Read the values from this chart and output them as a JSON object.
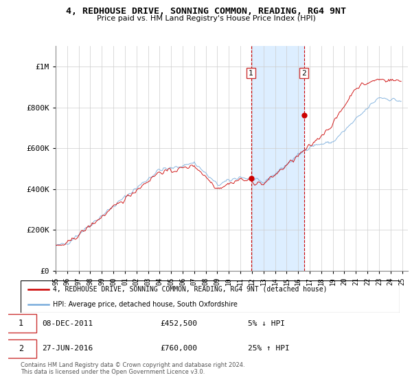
{
  "title": "4, REDHOUSE DRIVE, SONNING COMMON, READING, RG4 9NT",
  "subtitle": "Price paid vs. HM Land Registry's House Price Index (HPI)",
  "legend_line1": "4, REDHOUSE DRIVE, SONNING COMMON, READING, RG4 9NT (detached house)",
  "legend_line2": "HPI: Average price, detached house, South Oxfordshire",
  "transaction1_date": "08-DEC-2011",
  "transaction1_price": "£452,500",
  "transaction1_hpi": "5% ↓ HPI",
  "transaction2_date": "27-JUN-2016",
  "transaction2_price": "£760,000",
  "transaction2_hpi": "25% ↑ HPI",
  "footnote": "Contains HM Land Registry data © Crown copyright and database right 2024.\nThis data is licensed under the Open Government Licence v3.0.",
  "xlim_start": 1995.0,
  "xlim_end": 2025.5,
  "ylim_bottom": 0,
  "ylim_top": 1100000,
  "red_color": "#cc0000",
  "blue_color": "#7aaddc",
  "shade_color": "#ddeeff",
  "grid_color": "#cccccc",
  "transaction1_x": 2011.917,
  "transaction1_y": 452500,
  "transaction2_x": 2016.5,
  "transaction2_y": 760000,
  "ytick_vals": [
    0,
    200000,
    400000,
    600000,
    800000,
    1000000
  ],
  "ytick_labels": [
    "£0",
    "£200K",
    "£400K",
    "£600K",
    "£800K",
    "£1M"
  ],
  "xticks": [
    1995,
    1996,
    1997,
    1998,
    1999,
    2000,
    2001,
    2002,
    2003,
    2004,
    2005,
    2006,
    2007,
    2008,
    2009,
    2010,
    2011,
    2012,
    2013,
    2014,
    2015,
    2016,
    2017,
    2018,
    2019,
    2020,
    2021,
    2022,
    2023,
    2024,
    2025
  ],
  "noise_seed": 42
}
